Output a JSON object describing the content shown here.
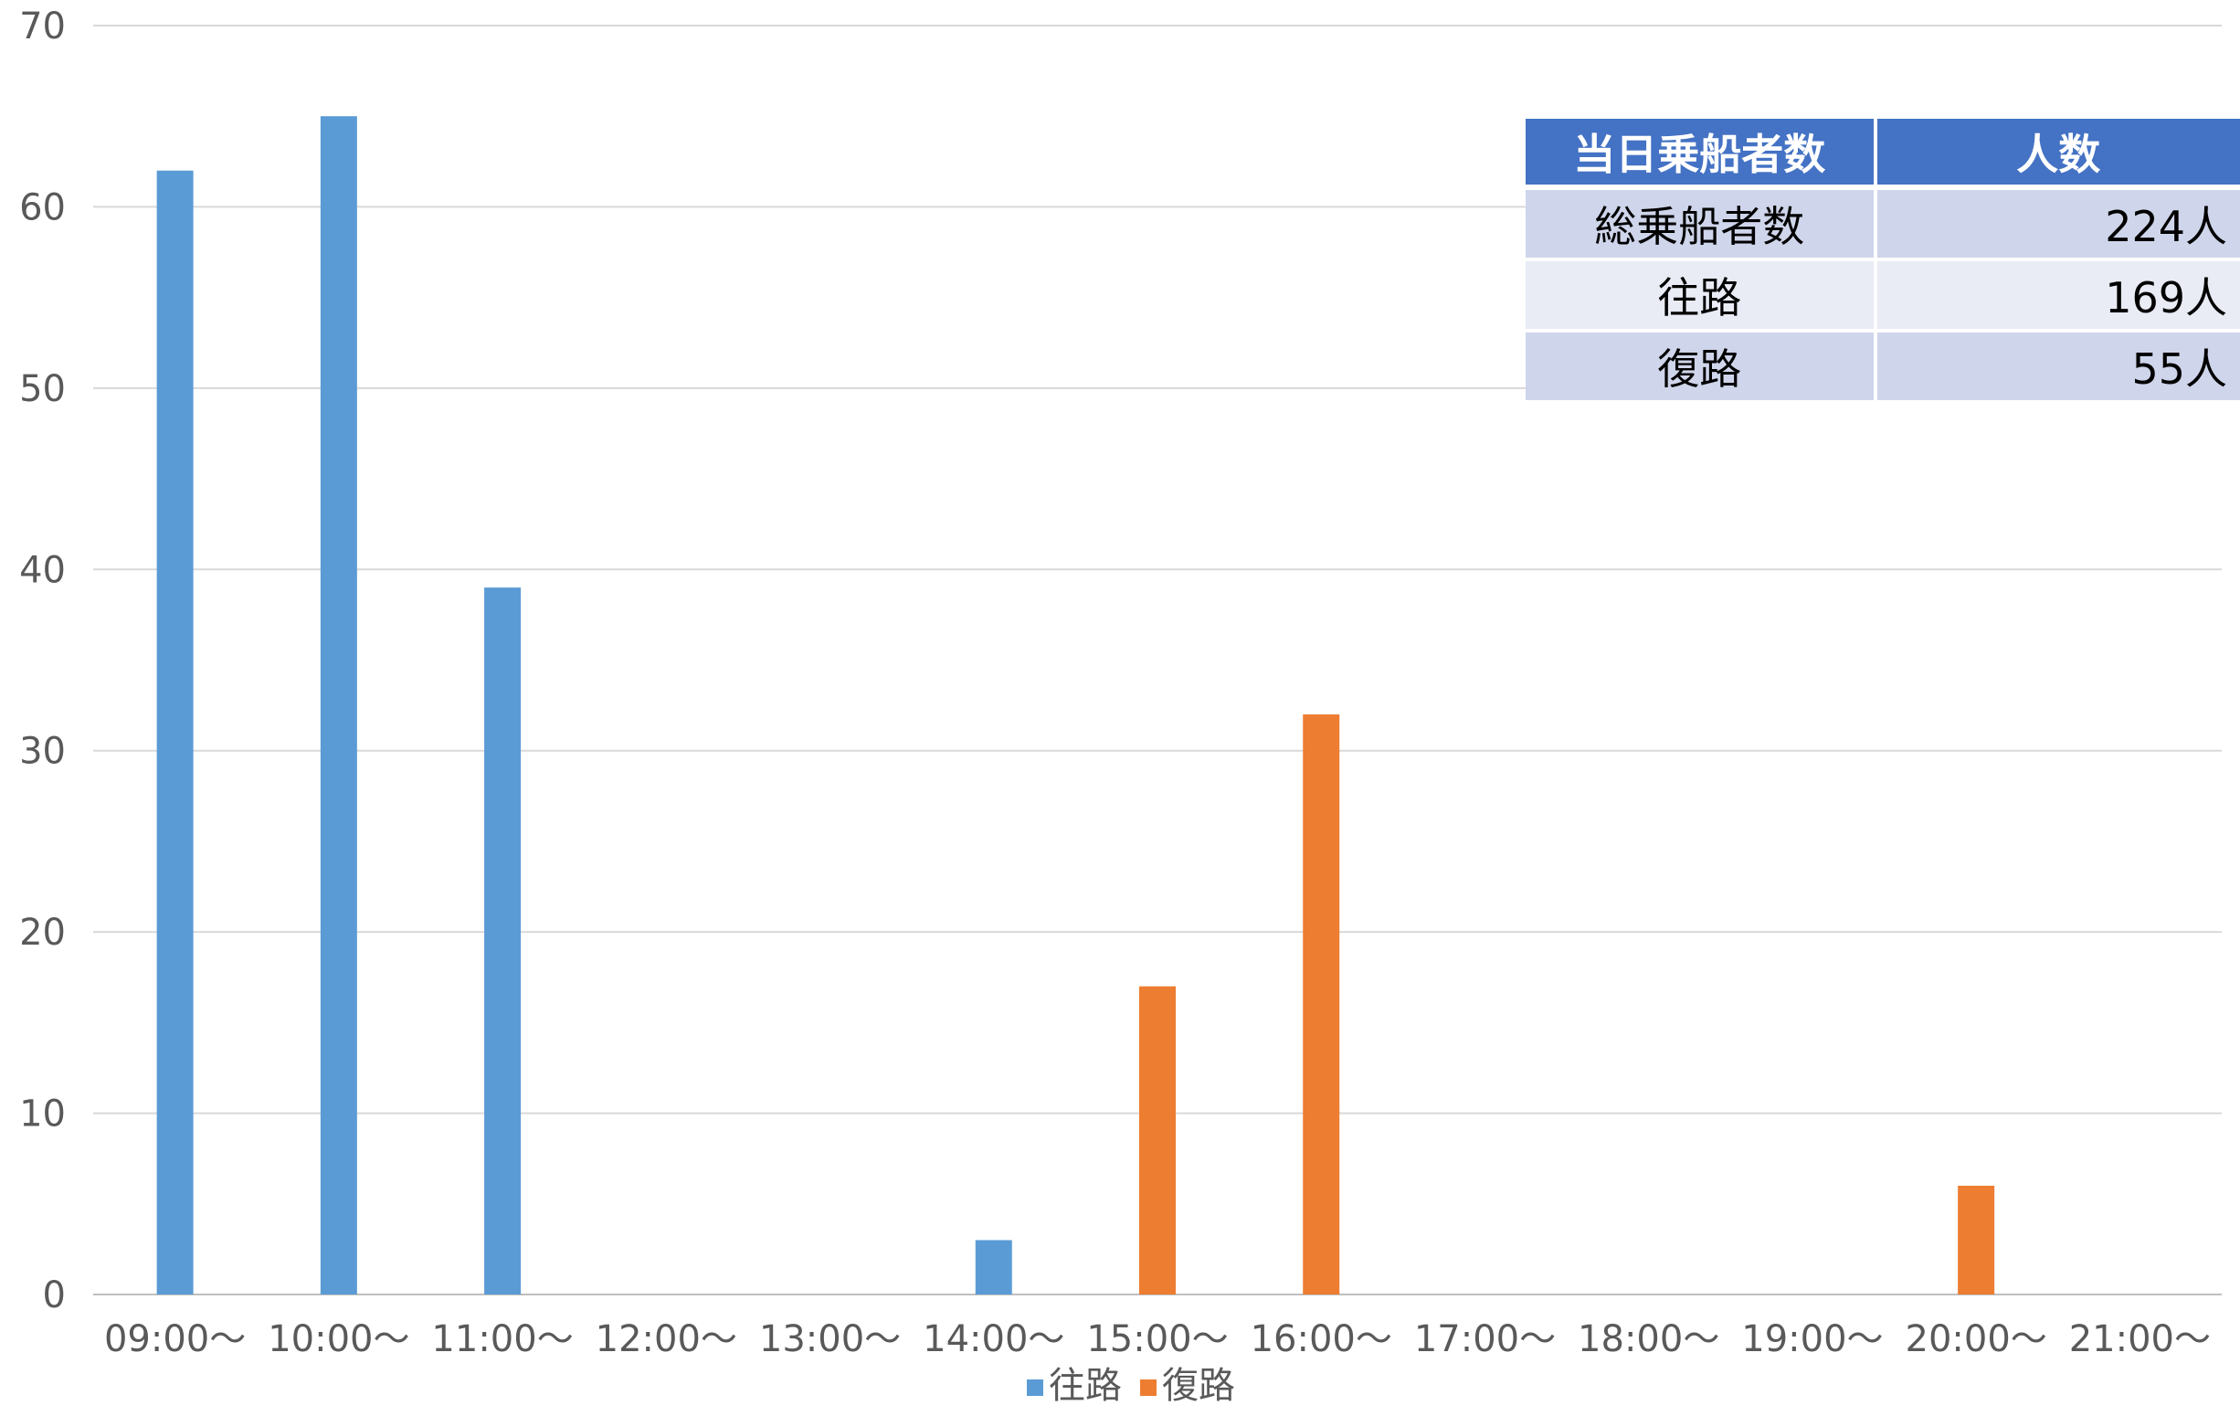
{
  "chart_data": {
    "type": "bar",
    "categories": [
      "09:00～",
      "10:00～",
      "11:00～",
      "12:00～",
      "13:00～",
      "14:00～",
      "15:00～",
      "16:00～",
      "17:00～",
      "18:00～",
      "19:00～",
      "20:00～",
      "21:00～"
    ],
    "series": [
      {
        "name": "往路",
        "color": "#5b9bd5",
        "values": [
          62,
          65,
          39,
          0,
          0,
          3,
          0,
          0,
          0,
          0,
          0,
          0,
          0
        ]
      },
      {
        "name": "復路",
        "color": "#ed7d31",
        "values": [
          0,
          0,
          0,
          0,
          0,
          0,
          17,
          32,
          0,
          0,
          0,
          6,
          0
        ]
      }
    ],
    "y_ticks": [
      0,
      10,
      20,
      30,
      40,
      50,
      60,
      70
    ],
    "ylim": [
      0,
      70
    ],
    "grid": true,
    "legend_position": "bottom",
    "title": "",
    "xlabel": "",
    "ylabel": ""
  },
  "summary_table": {
    "header": [
      "当日乗船者数",
      "人数"
    ],
    "rows": [
      {
        "label": "総乗船者数",
        "value": "224人"
      },
      {
        "label": "往路",
        "value": "169人"
      },
      {
        "label": "復路",
        "value": "55人"
      }
    ],
    "header_color": "#4472c4",
    "row_colors": [
      "#cfd5ea",
      "#e9ebf5"
    ]
  }
}
